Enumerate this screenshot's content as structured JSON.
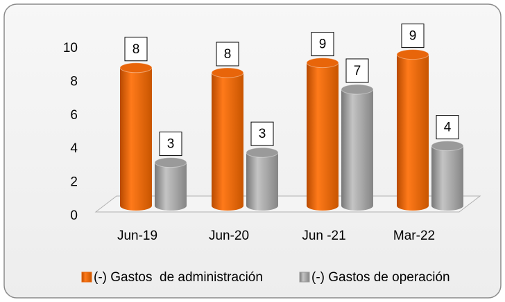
{
  "chart_data": {
    "type": "bar3d",
    "categories": [
      "Jun-19",
      "Jun-20",
      "Jun -21",
      "Mar-22"
    ],
    "series": [
      {
        "name": "(-) Gastos  de administración",
        "color": "#e8650a",
        "values": [
          8.3,
          8.0,
          8.6,
          9.1
        ],
        "value_labels": [
          "8",
          "8",
          "9",
          "9"
        ]
      },
      {
        "name": "(-) Gastos de operación",
        "color": "#9a9a9a",
        "values": [
          2.6,
          3.2,
          7.0,
          3.6
        ],
        "value_labels": [
          "3",
          "3",
          "7",
          "4"
        ]
      }
    ],
    "ylim": [
      0,
      10
    ],
    "yticks": [
      0,
      2,
      4,
      6,
      8,
      10
    ],
    "legend": "bottom"
  }
}
